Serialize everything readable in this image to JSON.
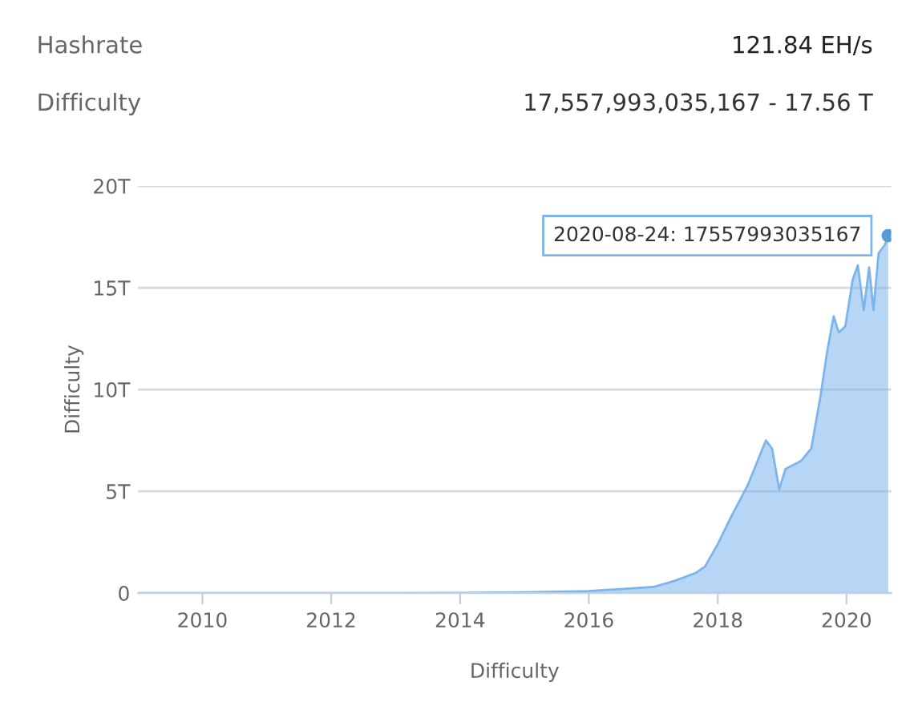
{
  "chart_data": {
    "type": "area",
    "xlabel": "Difficulty",
    "ylabel": "Difficulty",
    "annotations": [
      "Hashrate",
      "121.84 EH/s",
      "Difficulty",
      "17,557,993,035,167 - 17.56 T",
      {
        "text": "2020-08-24: 17557993035167",
        "x": "2020-08-24",
        "y": 17.557993035167
      }
    ],
    "x": [
      "2009-01-03",
      "2010-01-01",
      "2011-01-01",
      "2012-01-01",
      "2013-01-01",
      "2014-01-01",
      "2015-01-01",
      "2016-01-01",
      "2016-07-01",
      "2017-01-01",
      "2017-05-01",
      "2017-09-01",
      "2017-10-20",
      "2018-01-01",
      "2018-03-15",
      "2018-06-20",
      "2018-10-01",
      "2018-11-05",
      "2018-12-15",
      "2019-01-20",
      "2019-04-20",
      "2019-06-15",
      "2019-08-07",
      "2019-09-12",
      "2019-10-20",
      "2019-11-18",
      "2019-12-25",
      "2020-02-05",
      "2020-03-05",
      "2020-03-22",
      "2020-04-08",
      "2020-05-08",
      "2020-06-02",
      "2020-07-01",
      "2020-08-05",
      "2020-08-24"
    ],
    "series": [
      {
        "color": "#7cb5ec",
        "values": [
          0,
          0,
          0,
          0,
          0,
          0.01,
          0.04,
          0.1,
          0.2,
          0.3,
          0.6,
          1.0,
          1.3,
          2.4,
          3.7,
          5.3,
          7.5,
          7.1,
          5.1,
          6.1,
          6.5,
          7.1,
          9.7,
          11.8,
          13.6,
          12.8,
          13.1,
          15.4,
          16.1,
          15.0,
          13.9,
          16.0,
          13.9,
          16.7,
          17.1,
          17.557993035167
        ]
      }
    ],
    "xlim": [
      "2009-01-01",
      "2020-09-10"
    ],
    "xticks": [
      {
        "value": "2010-01-01",
        "label": "2010"
      },
      {
        "value": "2012-01-01",
        "label": "2012"
      },
      {
        "value": "2014-01-01",
        "label": "2014"
      },
      {
        "value": "2016-01-01",
        "label": "2016"
      },
      {
        "value": "2018-01-01",
        "label": "2018"
      },
      {
        "value": "2020-01-01",
        "label": "2020"
      }
    ],
    "ylim": [
      0,
      20
    ],
    "yticks": [
      {
        "value": 0,
        "label": "0"
      },
      {
        "value": 5,
        "label": "5T"
      },
      {
        "value": 10,
        "label": "10T"
      },
      {
        "value": 15,
        "label": "15T"
      },
      {
        "value": 20,
        "label": "20T"
      }
    ],
    "grid": "y"
  }
}
